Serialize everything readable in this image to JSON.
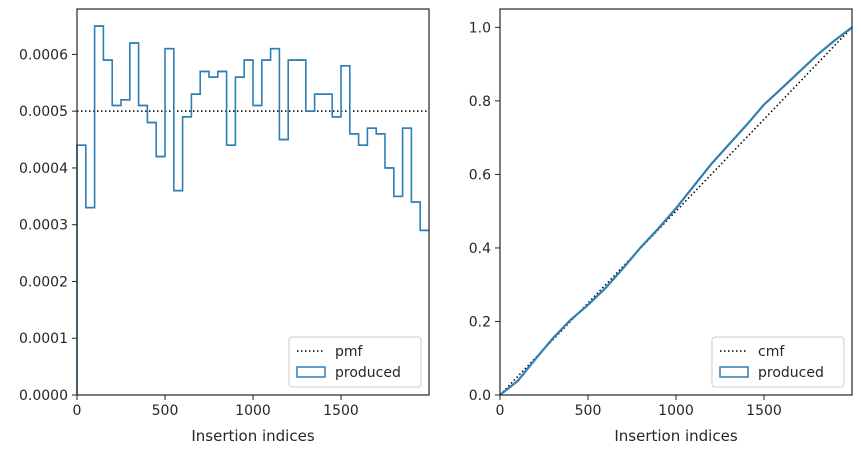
{
  "colors": {
    "produced": "#2f7fb5",
    "reference": "#000000",
    "axes": "#262626",
    "legend_border": "#cccccc"
  },
  "chart_data": [
    {
      "type": "area",
      "xlabel": "Insertion indices",
      "ylabel": "",
      "xlim": [
        0,
        2000
      ],
      "ylim": [
        0,
        0.00068
      ],
      "xticks": [
        0,
        500,
        1000,
        1500
      ],
      "xtick_labels": [
        "0",
        "500",
        "1000",
        "1500"
      ],
      "yticks": [
        0,
        0.0001,
        0.0002,
        0.0003,
        0.0004,
        0.0005,
        0.0006
      ],
      "ytick_labels": [
        "0.0000",
        "0.0001",
        "0.0002",
        "0.0003",
        "0.0004",
        "0.0005",
        "0.0006"
      ],
      "grid": false,
      "legend_position": "lower-right",
      "reference": {
        "name": "pmf",
        "value": 0.0005,
        "style": "dotted"
      },
      "series": [
        {
          "name": "produced",
          "style": "step",
          "bin_edges": [
            0,
            50,
            100,
            150,
            200,
            250,
            300,
            350,
            400,
            450,
            500,
            550,
            600,
            650,
            700,
            750,
            800,
            850,
            900,
            950,
            1000,
            1050,
            1100,
            1150,
            1200,
            1250,
            1300,
            1350,
            1400,
            1450,
            1500,
            1550,
            1600,
            1650,
            1700,
            1750,
            1800,
            1850,
            1900,
            1950,
            2000
          ],
          "values": [
            0.00044,
            0.00033,
            0.00065,
            0.00059,
            0.00051,
            0.00052,
            0.00062,
            0.00051,
            0.00048,
            0.00042,
            0.00061,
            0.00036,
            0.00049,
            0.00053,
            0.00057,
            0.00056,
            0.00057,
            0.00044,
            0.00056,
            0.00059,
            0.00051,
            0.00059,
            0.00061,
            0.00045,
            0.00059,
            0.00059,
            0.0005,
            0.00053,
            0.00053,
            0.00049,
            0.00058,
            0.00046,
            0.00044,
            0.00047,
            0.00046,
            0.0004,
            0.00035,
            0.00047,
            0.00034,
            0.00029
          ]
        }
      ]
    },
    {
      "type": "line",
      "xlabel": "Insertion indices",
      "ylabel": "",
      "xlim": [
        0,
        2000
      ],
      "ylim": [
        0,
        1.05
      ],
      "xticks": [
        0,
        500,
        1000,
        1500
      ],
      "xtick_labels": [
        "0",
        "500",
        "1000",
        "1500"
      ],
      "yticks": [
        0,
        0.2,
        0.4,
        0.6,
        0.8,
        1.0
      ],
      "ytick_labels": [
        "0.0",
        "0.2",
        "0.4",
        "0.6",
        "0.8",
        "1.0"
      ],
      "grid": false,
      "legend_position": "lower-right",
      "reference": {
        "name": "cmf",
        "x": [
          0,
          2000
        ],
        "y": [
          0,
          1.0
        ],
        "style": "dotted"
      },
      "series": [
        {
          "name": "produced",
          "x": [
            0,
            100,
            200,
            300,
            400,
            500,
            600,
            700,
            800,
            900,
            1000,
            1100,
            1200,
            1300,
            1400,
            1500,
            1600,
            1700,
            1800,
            1900,
            2000
          ],
          "y": [
            0,
            0.038,
            0.097,
            0.154,
            0.204,
            0.245,
            0.291,
            0.345,
            0.402,
            0.453,
            0.508,
            0.568,
            0.628,
            0.681,
            0.734,
            0.79,
            0.834,
            0.879,
            0.924,
            0.964,
            1.0
          ]
        }
      ]
    }
  ]
}
